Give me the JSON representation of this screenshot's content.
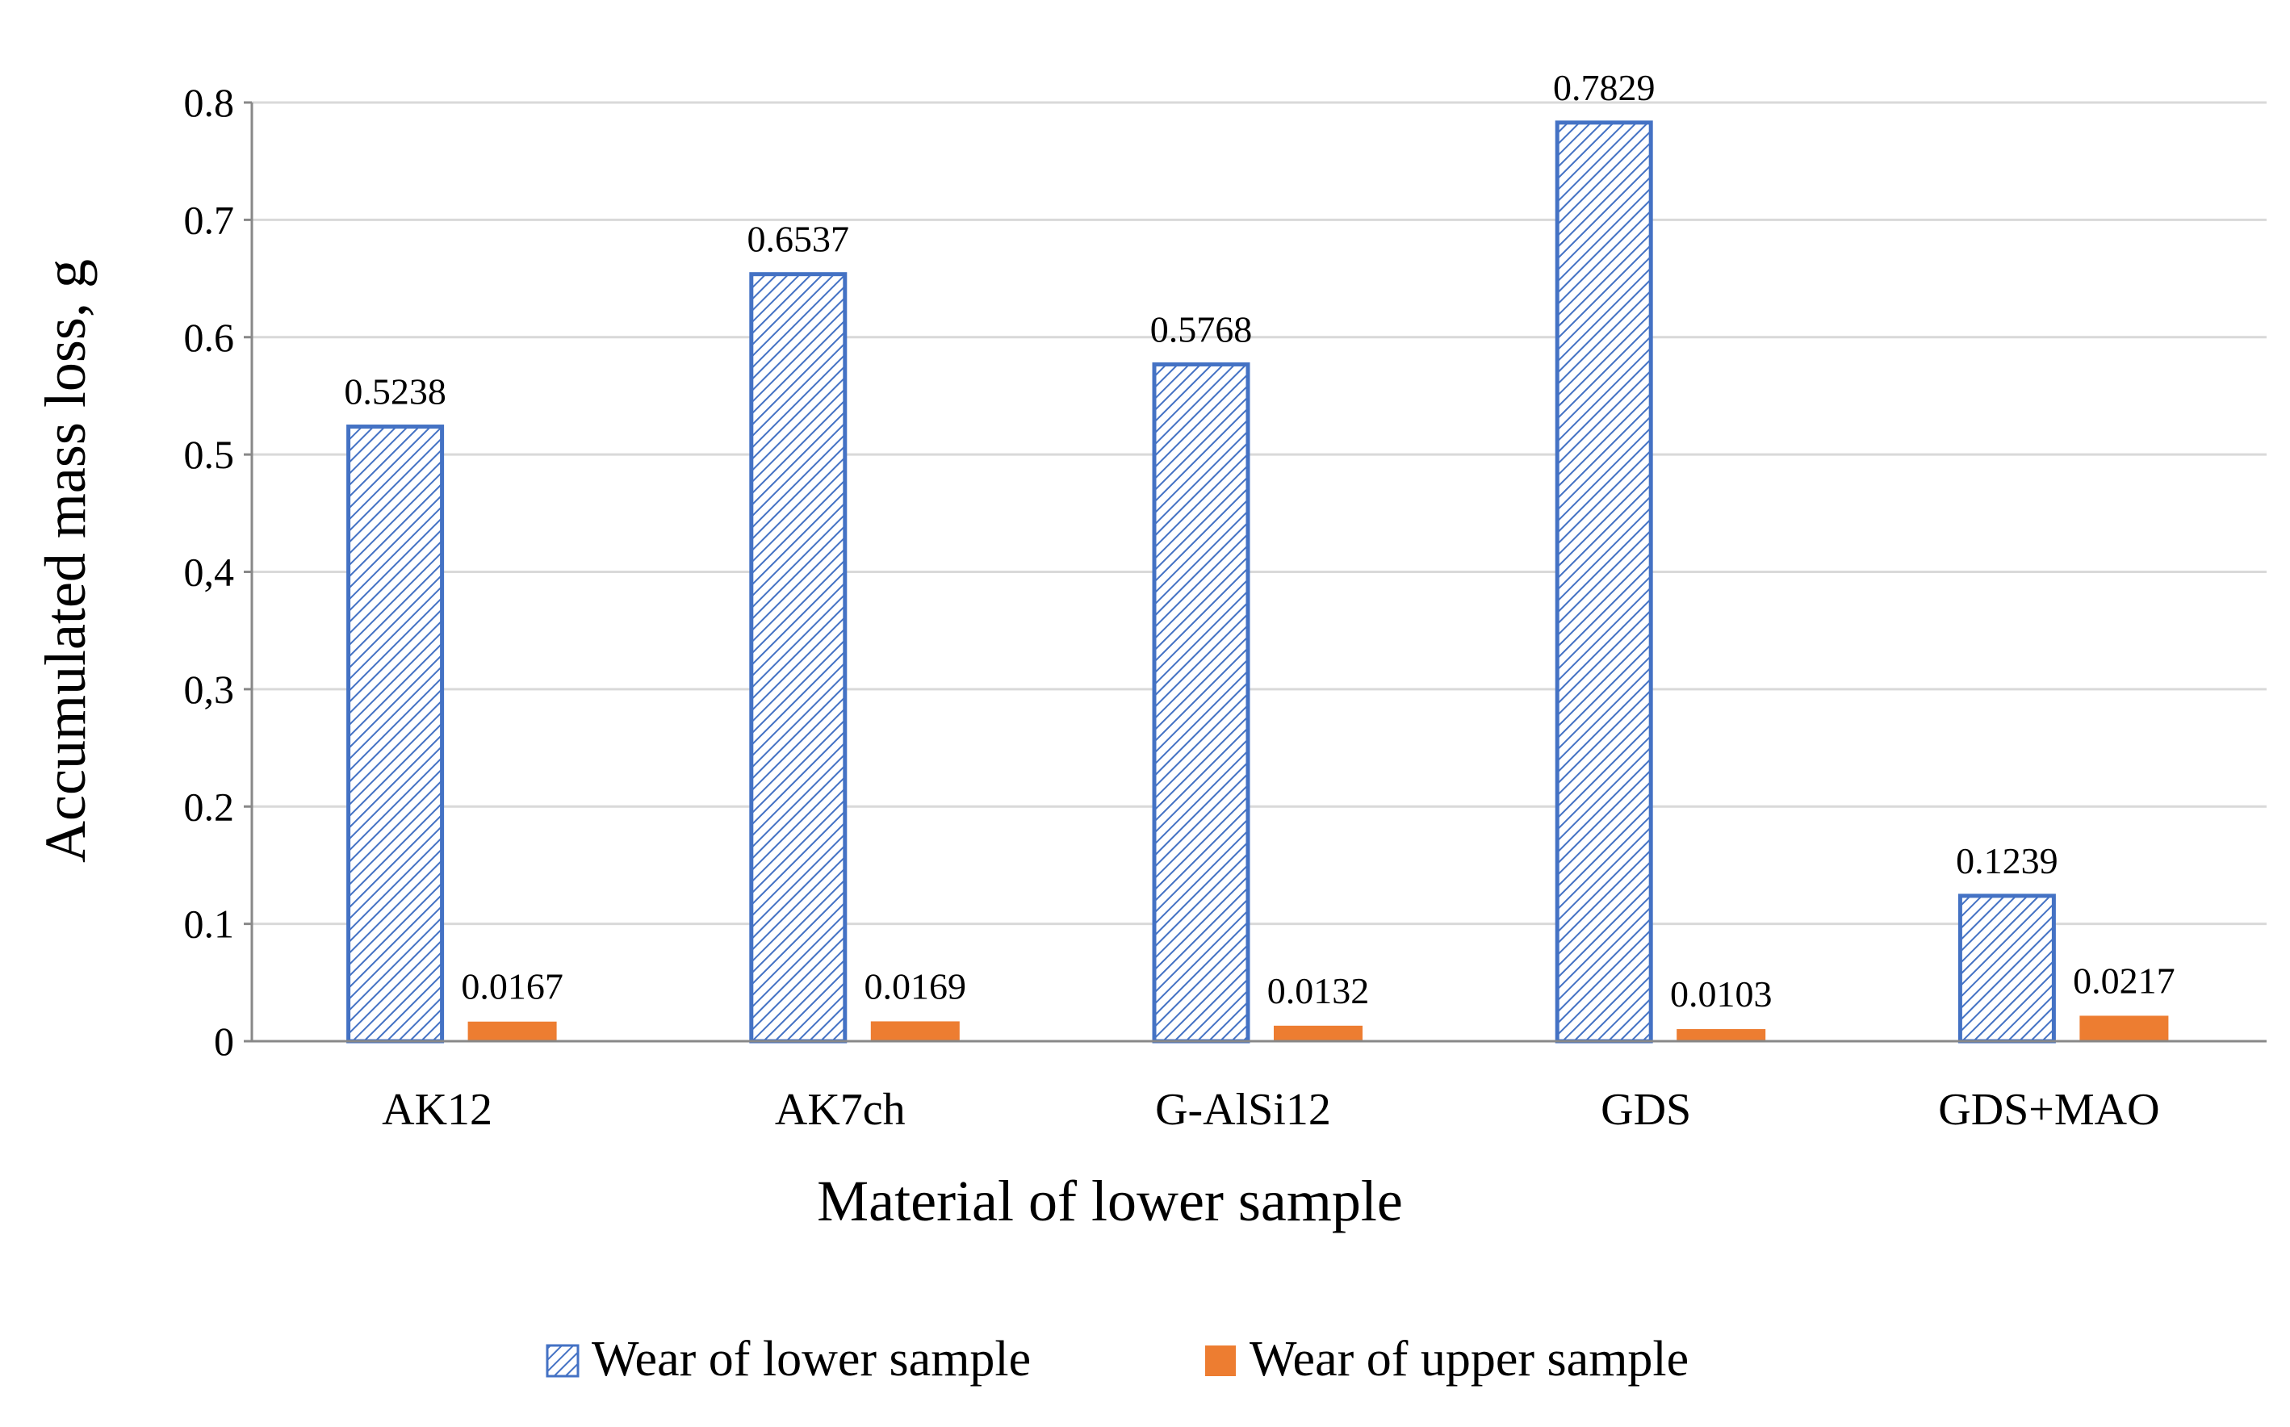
{
  "chart_data": {
    "type": "bar",
    "title": "",
    "xlabel": "Material of lower sample",
    "ylabel": "Accumulated mass loss, g",
    "ylim": [
      0,
      0.8
    ],
    "yticks": [
      0,
      0.1,
      0.2,
      0.3,
      0.4,
      0.5,
      0.6,
      0.7,
      0.8
    ],
    "ytick_labels": [
      "0",
      "0.1",
      "0.2",
      "0,3",
      "0,4",
      "0.5",
      "0.6",
      "0.7",
      "0.8"
    ],
    "grid": true,
    "legend_position": "bottom",
    "categories": [
      "AK12",
      "AK7ch",
      "G-AlSi12",
      "GDS",
      "GDS+MAO"
    ],
    "series": [
      {
        "name": "Wear of lower sample",
        "values": [
          0.5238,
          0.6537,
          0.5768,
          0.7829,
          0.1239
        ],
        "labels": [
          "0.5238",
          "0.6537",
          "0.5768",
          "0.7829",
          "0.1239"
        ],
        "color": "#4472C4",
        "pattern": "diagonal-hatch"
      },
      {
        "name": "Wear of upper sample",
        "values": [
          0.0167,
          0.0169,
          0.0132,
          0.0103,
          0.0217
        ],
        "labels": [
          "0.0167",
          "0.0169",
          "0.0132",
          "0.0103",
          "0.0217"
        ],
        "color": "#ED7D31",
        "pattern": "solid"
      }
    ]
  }
}
